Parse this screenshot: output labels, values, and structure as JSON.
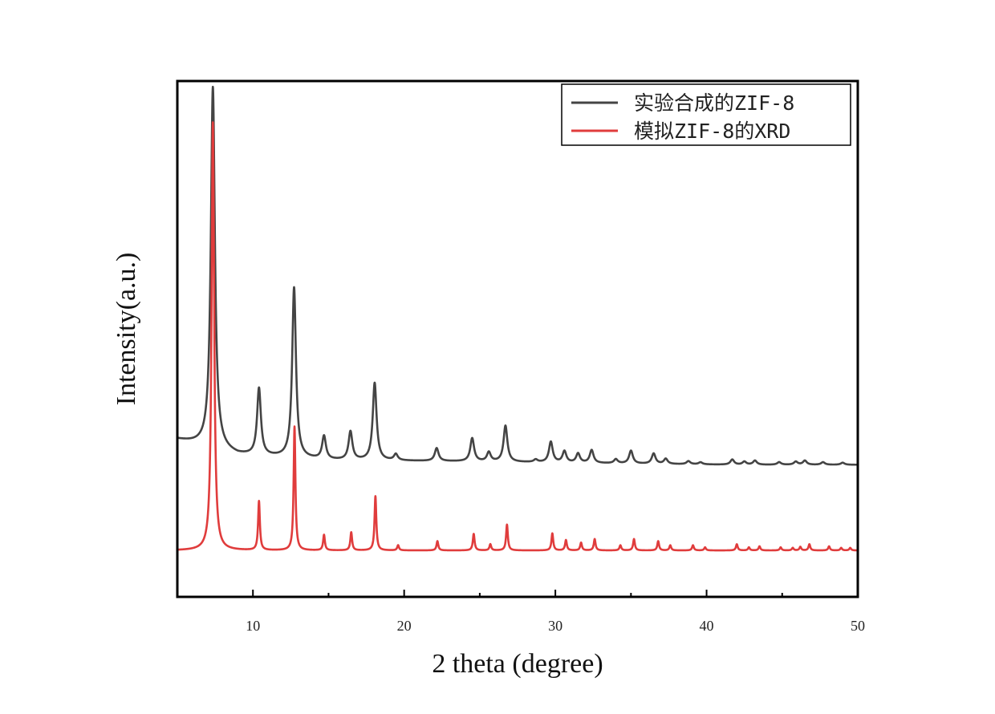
{
  "chart_data": {
    "type": "line",
    "xlabel": "2 theta (degree)",
    "ylabel": "Intensity(a.u.)",
    "xlim": [
      5,
      50
    ],
    "xticks": [
      10,
      20,
      30,
      40,
      50
    ],
    "y_axis_ticks_labeled": false,
    "grid": false,
    "legend": "top-right",
    "series": [
      {
        "name": "实验合成的ZIF-8",
        "color": "#444444",
        "baseline": [
          [
            5.0,
            0.305
          ],
          [
            6.5,
            0.295
          ],
          [
            9.0,
            0.275
          ],
          [
            15.0,
            0.265
          ],
          [
            25.0,
            0.262
          ],
          [
            35.0,
            0.258
          ],
          [
            42.0,
            0.256
          ],
          [
            50.0,
            0.256
          ]
        ],
        "peaks": [
          {
            "x": 7.35,
            "height": 0.7,
            "fwhm": 0.32
          },
          {
            "x": 10.4,
            "height": 0.13,
            "fwhm": 0.3
          },
          {
            "x": 12.72,
            "height": 0.33,
            "fwhm": 0.3
          },
          {
            "x": 14.7,
            "height": 0.045,
            "fwhm": 0.3
          },
          {
            "x": 16.45,
            "height": 0.055,
            "fwhm": 0.3
          },
          {
            "x": 18.05,
            "height": 0.15,
            "fwhm": 0.3
          },
          {
            "x": 19.45,
            "height": 0.012,
            "fwhm": 0.3
          },
          {
            "x": 22.15,
            "height": 0.025,
            "fwhm": 0.3
          },
          {
            "x": 24.5,
            "height": 0.045,
            "fwhm": 0.3
          },
          {
            "x": 25.6,
            "height": 0.018,
            "fwhm": 0.3
          },
          {
            "x": 26.7,
            "height": 0.07,
            "fwhm": 0.3
          },
          {
            "x": 28.7,
            "height": 0.005,
            "fwhm": 0.3
          },
          {
            "x": 29.7,
            "height": 0.04,
            "fwhm": 0.3
          },
          {
            "x": 30.6,
            "height": 0.022,
            "fwhm": 0.3
          },
          {
            "x": 31.5,
            "height": 0.018,
            "fwhm": 0.3
          },
          {
            "x": 32.4,
            "height": 0.025,
            "fwhm": 0.3
          },
          {
            "x": 34.0,
            "height": 0.008,
            "fwhm": 0.3
          },
          {
            "x": 35.0,
            "height": 0.025,
            "fwhm": 0.3
          },
          {
            "x": 36.5,
            "height": 0.02,
            "fwhm": 0.3
          },
          {
            "x": 37.3,
            "height": 0.01,
            "fwhm": 0.3
          },
          {
            "x": 38.8,
            "height": 0.006,
            "fwhm": 0.3
          },
          {
            "x": 39.6,
            "height": 0.004,
            "fwhm": 0.3
          },
          {
            "x": 41.7,
            "height": 0.01,
            "fwhm": 0.3
          },
          {
            "x": 42.5,
            "height": 0.006,
            "fwhm": 0.3
          },
          {
            "x": 43.2,
            "height": 0.008,
            "fwhm": 0.3
          },
          {
            "x": 44.8,
            "height": 0.005,
            "fwhm": 0.3
          },
          {
            "x": 45.9,
            "height": 0.006,
            "fwhm": 0.3
          },
          {
            "x": 46.5,
            "height": 0.008,
            "fwhm": 0.3
          },
          {
            "x": 47.7,
            "height": 0.005,
            "fwhm": 0.3
          },
          {
            "x": 49.0,
            "height": 0.004,
            "fwhm": 0.3
          }
        ]
      },
      {
        "name": "模拟ZIF-8的XRD",
        "color": "#e03c3c",
        "baseline": [
          [
            5.0,
            0.09
          ],
          [
            50.0,
            0.09
          ]
        ],
        "peaks": [
          {
            "x": 7.35,
            "height": 0.83,
            "fwhm": 0.2
          },
          {
            "x": 10.4,
            "height": 0.095,
            "fwhm": 0.14
          },
          {
            "x": 12.75,
            "height": 0.24,
            "fwhm": 0.14
          },
          {
            "x": 14.7,
            "height": 0.03,
            "fwhm": 0.14
          },
          {
            "x": 16.5,
            "height": 0.035,
            "fwhm": 0.14
          },
          {
            "x": 18.1,
            "height": 0.105,
            "fwhm": 0.14
          },
          {
            "x": 19.6,
            "height": 0.01,
            "fwhm": 0.14
          },
          {
            "x": 22.2,
            "height": 0.018,
            "fwhm": 0.14
          },
          {
            "x": 24.6,
            "height": 0.032,
            "fwhm": 0.14
          },
          {
            "x": 25.7,
            "height": 0.012,
            "fwhm": 0.14
          },
          {
            "x": 26.8,
            "height": 0.05,
            "fwhm": 0.14
          },
          {
            "x": 29.8,
            "height": 0.033,
            "fwhm": 0.14
          },
          {
            "x": 30.7,
            "height": 0.02,
            "fwhm": 0.14
          },
          {
            "x": 31.7,
            "height": 0.015,
            "fwhm": 0.14
          },
          {
            "x": 32.6,
            "height": 0.022,
            "fwhm": 0.14
          },
          {
            "x": 34.3,
            "height": 0.01,
            "fwhm": 0.14
          },
          {
            "x": 35.2,
            "height": 0.022,
            "fwhm": 0.14
          },
          {
            "x": 36.8,
            "height": 0.018,
            "fwhm": 0.14
          },
          {
            "x": 37.6,
            "height": 0.01,
            "fwhm": 0.14
          },
          {
            "x": 39.1,
            "height": 0.01,
            "fwhm": 0.14
          },
          {
            "x": 39.9,
            "height": 0.006,
            "fwhm": 0.14
          },
          {
            "x": 42.0,
            "height": 0.012,
            "fwhm": 0.14
          },
          {
            "x": 42.8,
            "height": 0.006,
            "fwhm": 0.14
          },
          {
            "x": 43.5,
            "height": 0.008,
            "fwhm": 0.14
          },
          {
            "x": 44.9,
            "height": 0.006,
            "fwhm": 0.14
          },
          {
            "x": 45.7,
            "height": 0.005,
            "fwhm": 0.14
          },
          {
            "x": 46.2,
            "height": 0.007,
            "fwhm": 0.14
          },
          {
            "x": 46.8,
            "height": 0.012,
            "fwhm": 0.14
          },
          {
            "x": 48.1,
            "height": 0.008,
            "fwhm": 0.14
          },
          {
            "x": 48.9,
            "height": 0.005,
            "fwhm": 0.14
          },
          {
            "x": 49.5,
            "height": 0.005,
            "fwhm": 0.14
          }
        ]
      }
    ]
  }
}
